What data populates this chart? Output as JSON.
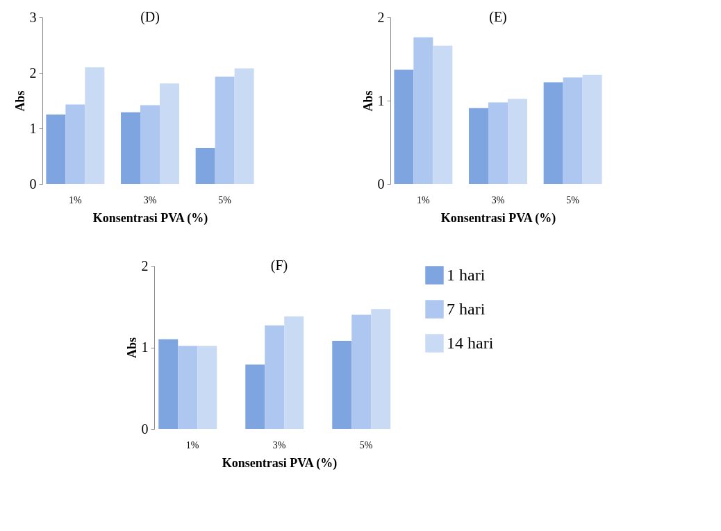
{
  "chart_data": [
    {
      "type": "bar",
      "title": "(D)",
      "xlabel": "Konsentrasi PVA (%)",
      "ylabel": "Abs",
      "categories": [
        "1%",
        "3%",
        "5%"
      ],
      "ylim": [
        0,
        3
      ],
      "yticks": [
        0,
        1,
        2,
        3
      ],
      "grid": false,
      "legend": false,
      "series": [
        {
          "color": "#7fa5e0",
          "values": [
            1.25,
            1.29,
            0.65
          ]
        },
        {
          "color": "#aec7f0",
          "values": [
            1.43,
            1.42,
            1.93
          ]
        },
        {
          "color": "#c9daf5",
          "values": [
            2.1,
            1.81,
            2.08
          ]
        }
      ]
    },
    {
      "type": "bar",
      "title": "(E)",
      "xlabel": "Konsentrasi PVA (%)",
      "ylabel": "Abs",
      "categories": [
        "1%",
        "3%",
        "5%"
      ],
      "ylim": [
        0,
        2
      ],
      "yticks": [
        0,
        1,
        2
      ],
      "grid": false,
      "legend": false,
      "series": [
        {
          "color": "#7fa5e0",
          "values": [
            1.37,
            0.91,
            1.22
          ]
        },
        {
          "color": "#aec7f0",
          "values": [
            1.76,
            0.98,
            1.28
          ]
        },
        {
          "color": "#c9daf5",
          "values": [
            1.66,
            1.02,
            1.31
          ]
        }
      ]
    },
    {
      "type": "bar",
      "title": "(F)",
      "xlabel": "Konsentrasi PVA (%)",
      "ylabel": "Abs",
      "categories": [
        "1%",
        "3%",
        "5%"
      ],
      "ylim": [
        0,
        2
      ],
      "yticks": [
        0,
        1,
        2
      ],
      "grid": false,
      "legend": "right",
      "series": [
        {
          "name": "1 hari",
          "color": "#7fa5e0",
          "values": [
            1.1,
            0.79,
            1.08
          ]
        },
        {
          "name": "7 hari",
          "color": "#aec7f0",
          "values": [
            1.02,
            1.27,
            1.4
          ]
        },
        {
          "name": "14 hari",
          "color": "#c9daf5",
          "values": [
            1.02,
            1.38,
            1.47
          ]
        }
      ]
    }
  ]
}
